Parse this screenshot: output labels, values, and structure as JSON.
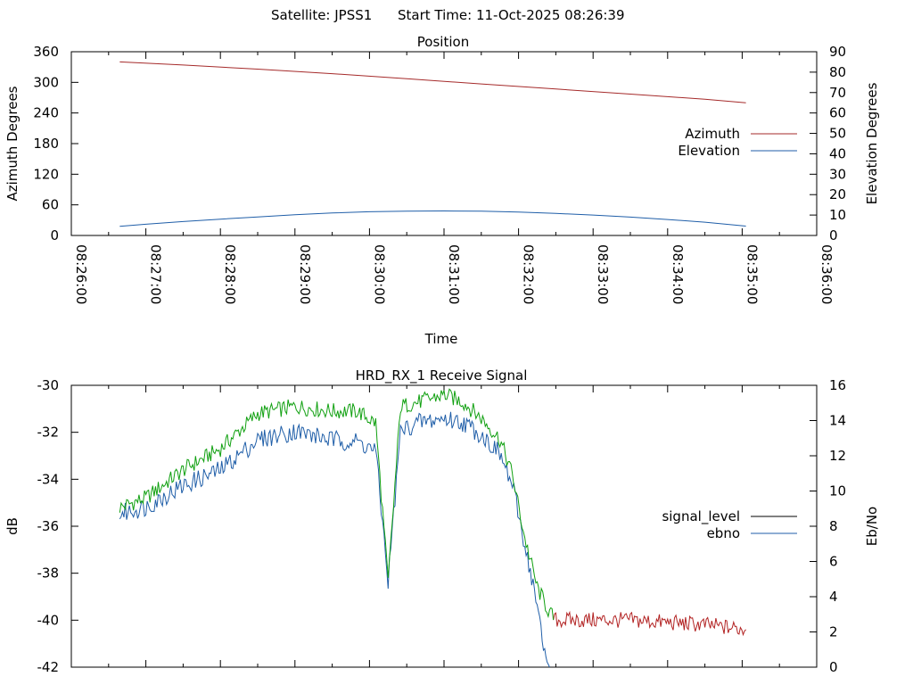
{
  "header": {
    "satellite_label": "Satellite: JPSS1",
    "start_time_label": "Start Time: 11-Oct-2025 08:26:39"
  },
  "chart_data": [
    {
      "type": "line",
      "title": "Position",
      "xlabel": "Time",
      "ylabel": "Azimuth Degrees",
      "y2label": "Elevation Degrees",
      "xlim": [
        "08:26:00",
        "08:36:00"
      ],
      "x_ticks": [
        "08:26:00",
        "08:27:00",
        "08:28:00",
        "08:29:00",
        "08:30:00",
        "08:31:00",
        "08:32:00",
        "08:33:00",
        "08:34:00",
        "08:35:00",
        "08:36:00"
      ],
      "ylim": [
        0,
        360
      ],
      "y_ticks": [
        0,
        60,
        120,
        180,
        240,
        300,
        360
      ],
      "y2lim": [
        0,
        90
      ],
      "y2_ticks": [
        0,
        10,
        20,
        30,
        40,
        50,
        60,
        70,
        80,
        90
      ],
      "legend_position": "right",
      "series": [
        {
          "name": "Azimuth",
          "color": "#a52a2a",
          "axis": "y",
          "x": [
            "08:26:39",
            "08:27:30",
            "08:28:30",
            "08:29:30",
            "08:30:30",
            "08:31:30",
            "08:32:30",
            "08:33:30",
            "08:34:30",
            "08:35:03"
          ],
          "values": [
            340,
            334,
            326,
            317,
            307,
            297,
            287,
            277,
            267,
            260
          ]
        },
        {
          "name": "Elevation",
          "color": "#1f5ea8",
          "axis": "y2",
          "x": [
            "08:26:39",
            "08:27:00",
            "08:27:30",
            "08:28:00",
            "08:28:30",
            "08:29:00",
            "08:29:30",
            "08:30:00",
            "08:30:30",
            "08:31:00",
            "08:31:30",
            "08:32:00",
            "08:32:30",
            "08:33:00",
            "08:33:30",
            "08:34:00",
            "08:34:30",
            "08:35:03"
          ],
          "values": [
            4.5,
            5.5,
            6.8,
            8.0,
            9.1,
            10.2,
            11.0,
            11.6,
            11.9,
            12.0,
            11.9,
            11.5,
            10.8,
            10.0,
            9.0,
            7.8,
            6.5,
            4.6
          ]
        }
      ]
    },
    {
      "type": "line",
      "title": "HRD_RX_1 Receive Signal",
      "ylabel": "dB",
      "y2label": "Eb/No",
      "xlim": [
        "08:26:00",
        "08:36:00"
      ],
      "ylim": [
        -42,
        -30
      ],
      "y_ticks": [
        -42,
        -40,
        -38,
        -36,
        -34,
        -32,
        -30
      ],
      "y2lim": [
        0,
        16
      ],
      "y2_ticks": [
        0,
        2,
        4,
        6,
        8,
        10,
        12,
        14,
        16
      ],
      "legend_position": "right",
      "series": [
        {
          "name": "signal_level",
          "color": "#000000",
          "axis": "y",
          "x": [
            "08:26:39",
            "08:27:00",
            "08:27:30",
            "08:28:00",
            "08:28:30",
            "08:29:00",
            "08:29:30",
            "08:29:50",
            "08:30:05",
            "08:30:15",
            "08:30:25",
            "08:30:40",
            "08:31:00",
            "08:31:15",
            "08:31:30",
            "08:31:45",
            "08:31:55",
            "08:32:05",
            "08:32:15",
            "08:32:25",
            "08:32:30",
            "08:33:00",
            "08:33:30",
            "08:34:00",
            "08:34:30",
            "08:35:03"
          ],
          "values": [
            -35.2,
            -34.8,
            -33.6,
            -32.7,
            -31.2,
            -30.9,
            -31.1,
            -31.1,
            -31.6,
            -38.4,
            -30.9,
            -30.7,
            -30.4,
            -30.7,
            -31.4,
            -32.3,
            -33.8,
            -36.5,
            -38.6,
            -39.7,
            -40.0,
            -40.0,
            -40.0,
            -40.1,
            -40.2,
            -40.4
          ]
        },
        {
          "name": "ebno",
          "color": "#1f5ea8",
          "axis": "y2",
          "x": [
            "08:26:39",
            "08:27:00",
            "08:27:30",
            "08:28:00",
            "08:28:30",
            "08:29:00",
            "08:29:30",
            "08:29:50",
            "08:30:05",
            "08:30:15",
            "08:30:25",
            "08:30:40",
            "08:31:00",
            "08:31:15",
            "08:31:30",
            "08:31:45",
            "08:31:55",
            "08:32:05",
            "08:32:15",
            "08:32:20",
            "08:32:25"
          ],
          "values": [
            8.7,
            9.1,
            10.3,
            11.2,
            12.9,
            13.4,
            12.9,
            12.8,
            12.3,
            4.9,
            13.4,
            13.9,
            14.1,
            13.9,
            13.2,
            12.1,
            10.3,
            7.0,
            3.5,
            1.0,
            0.0
          ]
        }
      ]
    }
  ]
}
